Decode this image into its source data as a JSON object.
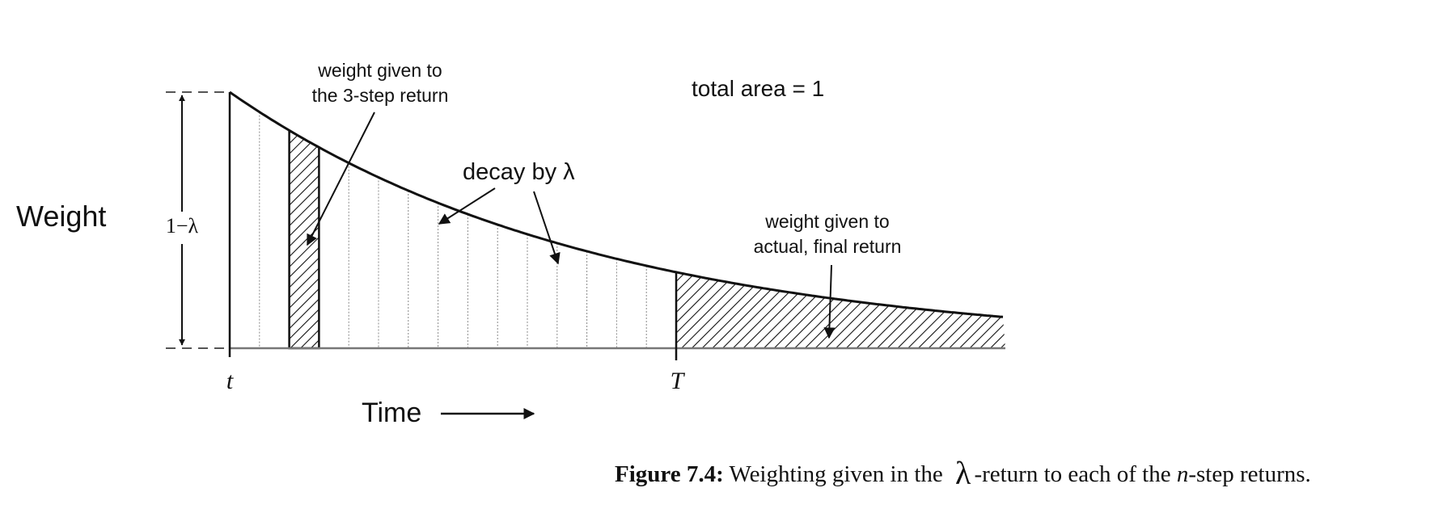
{
  "diagram": {
    "y_axis_label": "Weight",
    "height_label": "1−λ",
    "t_label": "t",
    "T_label": "T",
    "time_label": "Time",
    "annot_3step": [
      "weight given to",
      "the 3-step return"
    ],
    "annot_total": "total area = 1",
    "annot_decay": "decay by λ",
    "annot_final": [
      "weight given to",
      "actual, final return"
    ]
  },
  "caption": {
    "bold_part": "Figure 7.4:",
    "text_part1": "Weighting given in the",
    "lambda": "λ",
    "text_part2": "-return to each of the",
    "n": "n",
    "text_part3": "-step returns."
  },
  "colors": {
    "ink": "#111111",
    "guide": "#555555"
  }
}
